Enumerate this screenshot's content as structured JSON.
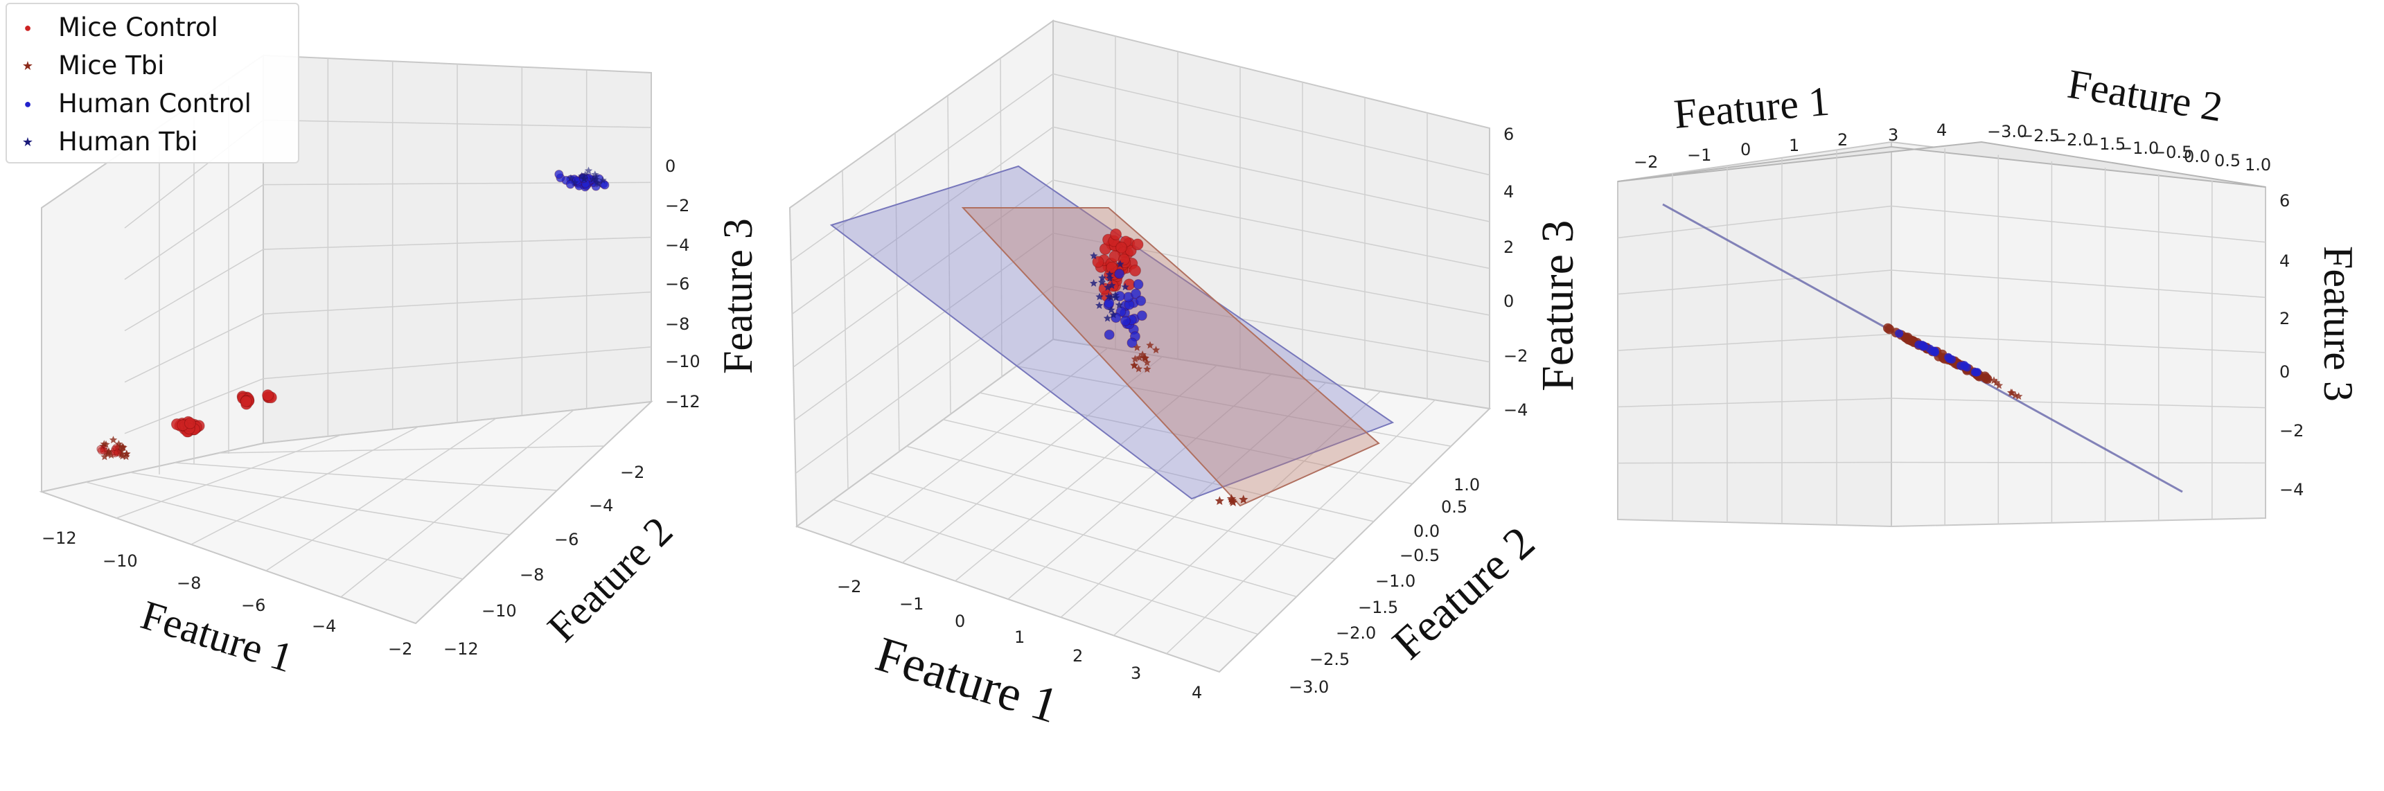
{
  "legend": {
    "items": [
      {
        "label": "Mice Control",
        "marker": "●",
        "color": "#cc2222"
      },
      {
        "label": "Mice Tbi",
        "marker": "★",
        "color": "#8b2a1a"
      },
      {
        "label": "Human Control",
        "marker": "●",
        "color": "#2222cc"
      },
      {
        "label": "Human Tbi",
        "marker": "★",
        "color": "#1a1a7a"
      }
    ]
  },
  "chart_data": [
    {
      "type": "scatter",
      "projection": "3d",
      "title": "",
      "xlabel": "Feature 1",
      "ylabel": "Feature 2",
      "zlabel": "Feature 3",
      "xticks": [
        "−12",
        "−10",
        "−8",
        "−6",
        "−4",
        "−2"
      ],
      "yticks": [
        "−12",
        "−10",
        "−8",
        "−6",
        "−4",
        "−2"
      ],
      "zticks": [
        "0",
        "−2",
        "−4",
        "−6",
        "−8",
        "−10",
        "−12"
      ],
      "xlim": [
        -12,
        -2
      ],
      "ylim": [
        -12,
        -2
      ],
      "zlim": [
        -12,
        0
      ],
      "grid": true,
      "legend": "top-left",
      "series": [
        {
          "name": "Mice Control",
          "color": "#cc2222",
          "marker": "circle"
        },
        {
          "name": "Mice Tbi",
          "color": "#8b2a1a",
          "marker": "star"
        },
        {
          "name": "Human Control",
          "color": "#2222cc",
          "marker": "circle"
        },
        {
          "name": "Human Tbi",
          "color": "#1a1a7a",
          "marker": "star"
        }
      ]
    },
    {
      "type": "scatter",
      "projection": "3d",
      "title": "",
      "xlabel": "Feature 1",
      "ylabel": "Feature 2",
      "zlabel": "Feature 3",
      "xticks": [
        "−2",
        "−1",
        "0",
        "1",
        "2",
        "3",
        "4"
      ],
      "yticks": [
        "1.0",
        "0.5",
        "0.0",
        "−0.5",
        "−1.0",
        "−1.5",
        "−2.0",
        "−2.5",
        "−3.0"
      ],
      "zticks": [
        "6",
        "4",
        "2",
        "0",
        "−2",
        "−4"
      ],
      "xlim": [
        -2.5,
        4
      ],
      "ylim": [
        -3,
        1
      ],
      "zlim": [
        -4,
        6
      ],
      "grid": true,
      "planes": [
        {
          "color": "#8888cc"
        },
        {
          "color": "#c08070"
        }
      ]
    },
    {
      "type": "scatter",
      "projection": "3d",
      "title": "",
      "xlabel": "Feature 1",
      "ylabel": "Feature 2",
      "zlabel": "Feature 3",
      "xticks": [
        "−2",
        "−1",
        "0",
        "1",
        "2",
        "3",
        "4"
      ],
      "yticks": [
        "−3.0",
        "−2.5",
        "−2.0",
        "−1.5",
        "−1.0",
        "−0.5",
        "0.0",
        "0.5",
        "1.0"
      ],
      "zticks": [
        "6",
        "4",
        "2",
        "0",
        "−2",
        "−4"
      ],
      "xlim": [
        -2,
        4
      ],
      "ylim": [
        -3,
        1
      ],
      "zlim": [
        -4,
        6
      ],
      "grid": true
    }
  ]
}
